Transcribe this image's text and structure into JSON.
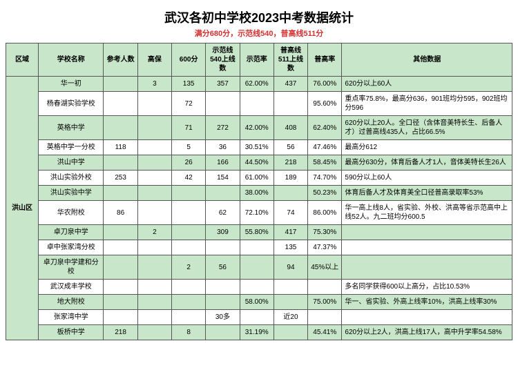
{
  "title": "武汉各初中学校2023中考数据统计",
  "subtitle": "满分680分，示范线540，普高线511分",
  "subtitle_color": "#d32f2f",
  "headers": {
    "region": "区域",
    "school": "学校名称",
    "count": "参考人数",
    "gaobao": "高保",
    "s600": "600分",
    "demo540": "示范线540上线数",
    "demorate": "示范率",
    "pu511": "普高线511上线数",
    "purate": "普高率",
    "other": "其他数据"
  },
  "region": "洪山区",
  "rows": [
    {
      "school": "华一初",
      "count": "",
      "gaobao": "3",
      "s600": "135",
      "demo540": "357",
      "demorate": "62.00%",
      "pu511": "437",
      "purate": "76.00%",
      "other": "620分以上60人"
    },
    {
      "school": "杨春湖实验学校",
      "count": "",
      "gaobao": "",
      "s600": "72",
      "demo540": "",
      "demorate": "",
      "pu511": "",
      "purate": "95.60%",
      "other": "重点率75.8%，最高分636，901班均分595，902班均分596"
    },
    {
      "school": "英格中学",
      "count": "",
      "gaobao": "",
      "s600": "71",
      "demo540": "272",
      "demorate": "42.00%",
      "pu511": "408",
      "purate": "62.40%",
      "other": "620分以上20人。全口径（含体音美特长生、后备人才）过普高线435人，占比66.5%"
    },
    {
      "school": "英格中学一分校",
      "count": "118",
      "gaobao": "",
      "s600": "5",
      "demo540": "36",
      "demorate": "30.51%",
      "pu511": "56",
      "purate": "47.46%",
      "other": "最高分612"
    },
    {
      "school": "洪山中学",
      "count": "",
      "gaobao": "",
      "s600": "26",
      "demo540": "166",
      "demorate": "44.50%",
      "pu511": "218",
      "purate": "58.45%",
      "other": "最高分630分，体育后备人才1人，音体美特长生26人"
    },
    {
      "school": "洪山实验外校",
      "count": "253",
      "gaobao": "",
      "s600": "42",
      "demo540": "154",
      "demorate": "61.00%",
      "pu511": "189",
      "purate": "74.70%",
      "other": "590分以上60人"
    },
    {
      "school": "洪山实验中学",
      "count": "",
      "gaobao": "",
      "s600": "",
      "demo540": "",
      "demorate": "38.00%",
      "pu511": "",
      "purate": "50.23%",
      "other": "体育后备人才及体育美全口径普高录取率53%"
    },
    {
      "school": "华农附校",
      "count": "86",
      "gaobao": "",
      "s600": "",
      "demo540": "62",
      "demorate": "72.10%",
      "pu511": "74",
      "purate": "86.00%",
      "other": "华一高上线8人，省实验、外校、洪高等省示范高中上线52人。九二班均分600.5"
    },
    {
      "school": "卓刀泉中学",
      "count": "",
      "gaobao": "2",
      "s600": "",
      "demo540": "309",
      "demorate": "55.80%",
      "pu511": "417",
      "purate": "75.30%",
      "other": ""
    },
    {
      "school": "卓中张家湾分校",
      "count": "",
      "gaobao": "",
      "s600": "",
      "demo540": "",
      "demorate": "",
      "pu511": "135",
      "purate": "47.37%",
      "other": ""
    },
    {
      "school": "卓刀泉中学建和分校",
      "count": "",
      "gaobao": "",
      "s600": "2",
      "demo540": "56",
      "demorate": "",
      "pu511": "94",
      "purate": "45%以上",
      "other": ""
    },
    {
      "school": "武汉成丰学校",
      "count": "",
      "gaobao": "",
      "s600": "",
      "demo540": "",
      "demorate": "",
      "pu511": "",
      "purate": "",
      "other": "多名同学获得600以上高分，占比10.53%"
    },
    {
      "school": "地大附校",
      "count": "",
      "gaobao": "",
      "s600": "",
      "demo540": "",
      "demorate": "58.00%",
      "pu511": "",
      "purate": "75.00%",
      "other": "华一、省实验、外高上线率10%，洪高上线率30%"
    },
    {
      "school": "张家湾中学",
      "count": "",
      "gaobao": "",
      "s600": "",
      "demo540": "30多",
      "demorate": "",
      "pu511": "近20",
      "purate": "",
      "other": ""
    },
    {
      "school": "板桥中学",
      "count": "218",
      "gaobao": "",
      "s600": "8",
      "demo540": "",
      "demorate": "31.19%",
      "pu511": "",
      "purate": "45.41%",
      "other": "620分以上2人，洪高上线17人，高中升学率54.58%"
    }
  ]
}
